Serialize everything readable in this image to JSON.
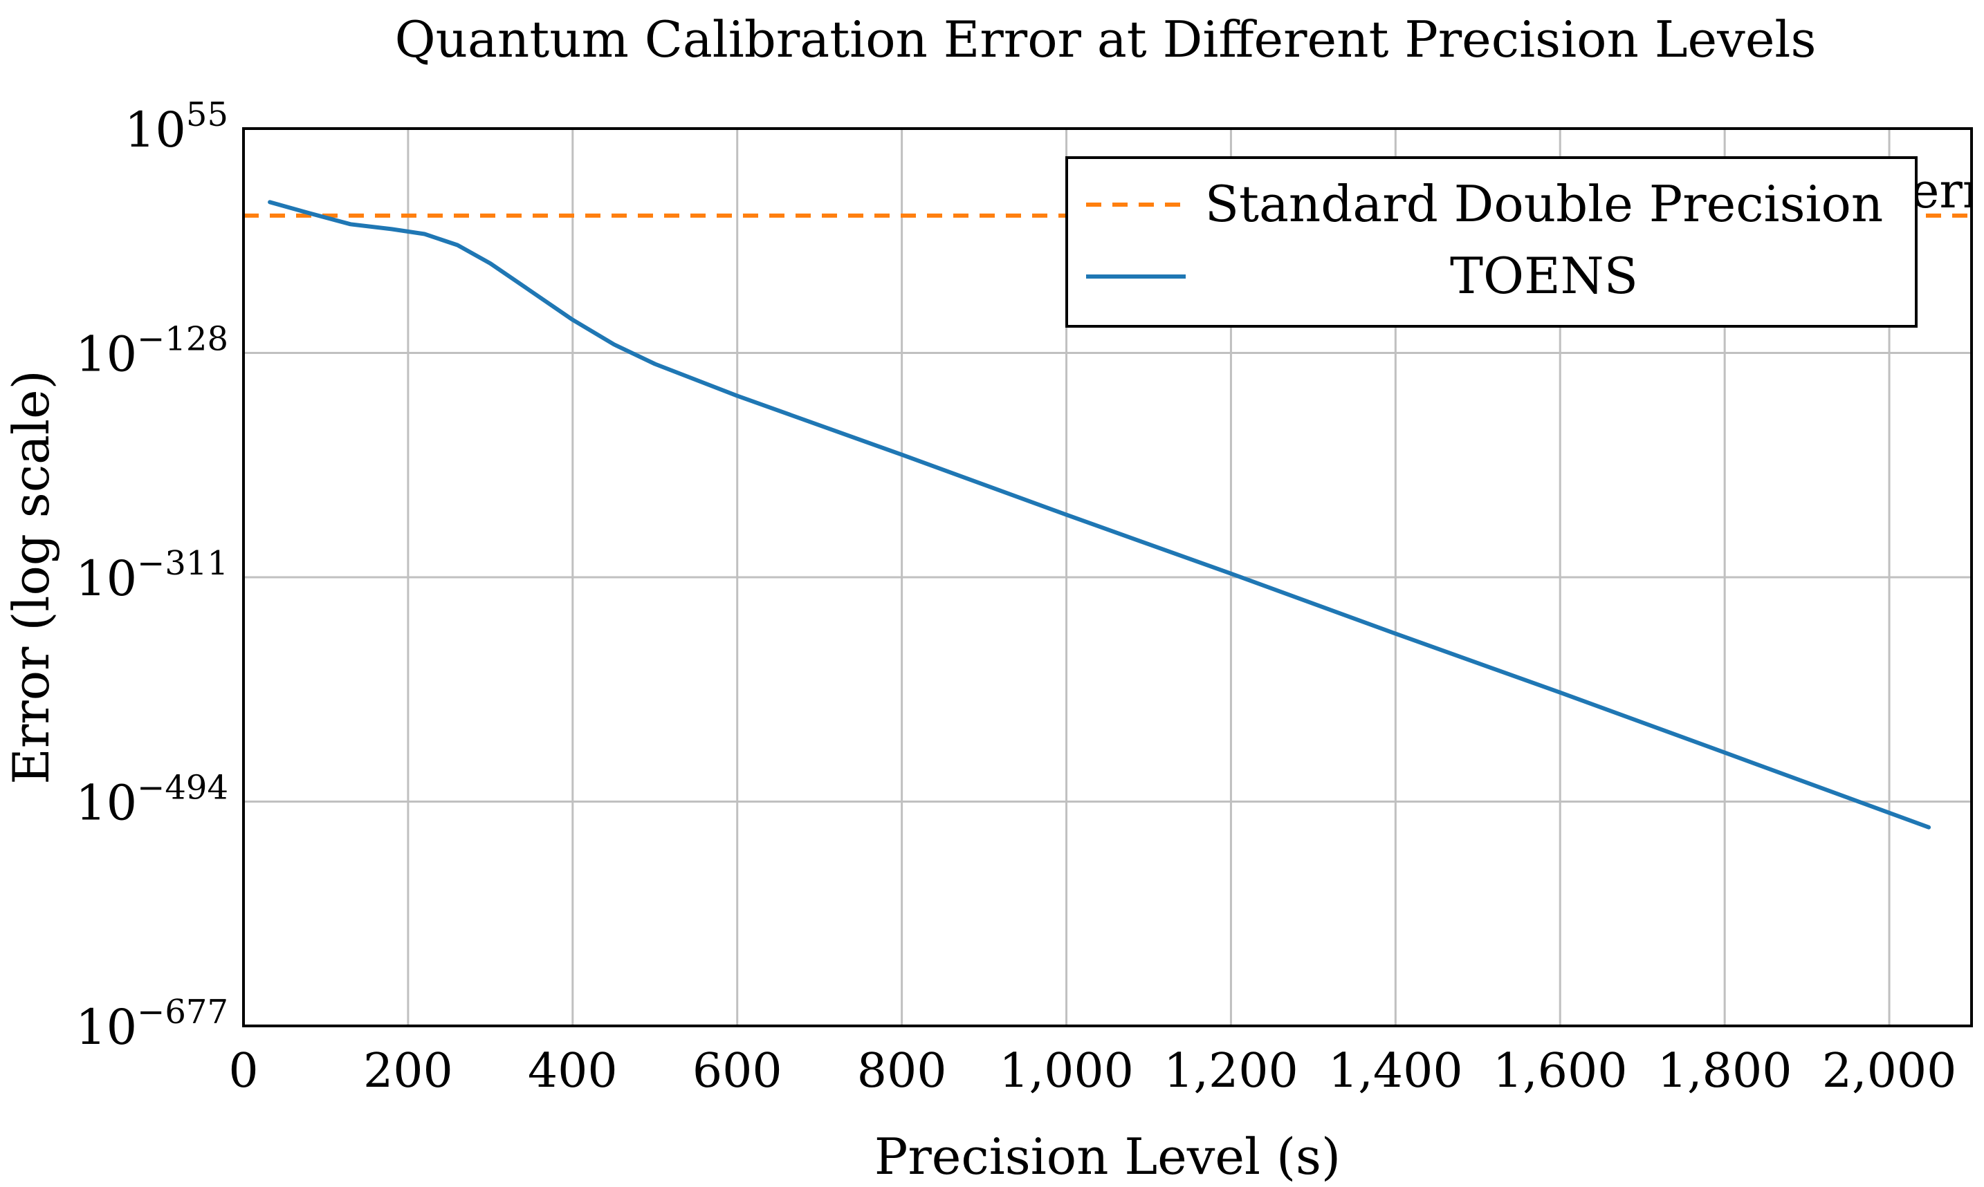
{
  "chart_data": {
    "type": "line",
    "title": "Quantum Calibration Error at Different Precision Levels",
    "xlabel": "Precision Level (s)",
    "ylabel": "Error (log scale)",
    "xlim": [
      0,
      2100
    ],
    "ylim_exponent": [
      -677,
      55
    ],
    "x_ticks": [
      0,
      200,
      400,
      600,
      800,
      1000,
      1200,
      1400,
      1600,
      1800,
      2000
    ],
    "x_tick_labels": [
      "0",
      "200",
      "400",
      "600",
      "800",
      "1,000",
      "1,200",
      "1,400",
      "1,600",
      "1,800",
      "2,000"
    ],
    "y_ticks_exponent": [
      55,
      -128,
      -311,
      -494,
      -677
    ],
    "y_tick_base": "10",
    "grid": true,
    "legend_position": "top-right",
    "series": [
      {
        "name": "Standard Double Precision",
        "style": "dashed",
        "color": "#ff7f0e",
        "x": [
          0,
          2100
        ],
        "y_exponent": [
          -16,
          -16
        ]
      },
      {
        "name": "TOENS",
        "style": "solid",
        "color": "#1f77b4",
        "x": [
          32,
          80,
          130,
          180,
          220,
          260,
          300,
          350,
          400,
          450,
          500,
          600,
          800,
          1000,
          1200,
          1400,
          1600,
          1800,
          2048
        ],
        "y_exponent": [
          -5,
          -14,
          -23,
          -27,
          -31,
          -40,
          -55,
          -78,
          -101,
          -121,
          -137,
          -163,
          -211,
          -260,
          -308,
          -357,
          -405,
          -454,
          -515
        ]
      }
    ],
    "annotations": [
      {
        "text": "err",
        "note": "partially clipped label at right edge behind legend"
      }
    ]
  }
}
